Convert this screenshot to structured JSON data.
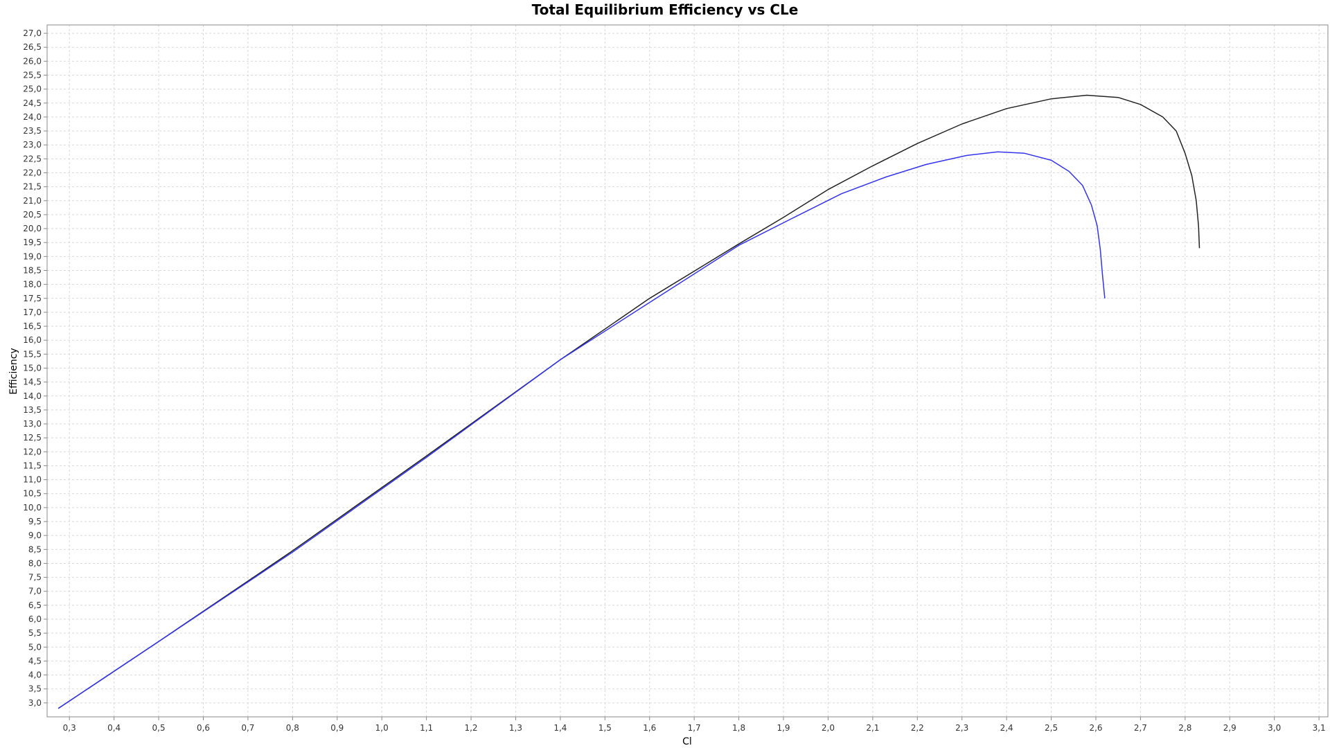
{
  "chart_data": {
    "type": "line",
    "title": "Total Equilibrium Efficiency vs CLe",
    "xlabel": "Cl",
    "ylabel": "Efficiency",
    "xlim": [
      0.25,
      3.12
    ],
    "ylim": [
      2.5,
      27.3
    ],
    "x_ticks": [
      "0,3",
      "0,4",
      "0,5",
      "0,6",
      "0,7",
      "0,8",
      "0,9",
      "1,0",
      "1,1",
      "1,2",
      "1,3",
      "1,4",
      "1,5",
      "1,6",
      "1,7",
      "1,8",
      "1,9",
      "2,0",
      "2,1",
      "2,2",
      "2,3",
      "2,4",
      "2,5",
      "2,6",
      "2,7",
      "2,8",
      "2,9",
      "3,0",
      "3,1"
    ],
    "y_ticks": [
      "3,0",
      "3,5",
      "4,0",
      "4,5",
      "5,0",
      "5,5",
      "6,0",
      "6,5",
      "7,0",
      "7,5",
      "8,0",
      "8,5",
      "9,0",
      "9,5",
      "10,0",
      "10,5",
      "11,0",
      "11,5",
      "12,0",
      "12,5",
      "13,0",
      "13,5",
      "14,0",
      "14,5",
      "15,0",
      "15,5",
      "16,0",
      "16,5",
      "17,0",
      "17,5",
      "18,0",
      "18,5",
      "19,0",
      "19,5",
      "20,0",
      "20,5",
      "21,0",
      "21,5",
      "22,0",
      "22,5",
      "23,0",
      "23,5",
      "24,0",
      "24,5",
      "25,0",
      "25,5",
      "26,0",
      "26,5",
      "27,0"
    ],
    "grid": true,
    "series": [
      {
        "color": "#222222",
        "points": [
          [
            0.275,
            2.8
          ],
          [
            0.5,
            5.2
          ],
          [
            0.8,
            8.45
          ],
          [
            1.1,
            11.85
          ],
          [
            1.4,
            15.3
          ],
          [
            1.6,
            17.5
          ],
          [
            1.8,
            19.45
          ],
          [
            1.9,
            20.4
          ],
          [
            2.0,
            21.4
          ],
          [
            2.1,
            22.25
          ],
          [
            2.2,
            23.05
          ],
          [
            2.3,
            23.75
          ],
          [
            2.4,
            24.3
          ],
          [
            2.5,
            24.65
          ],
          [
            2.58,
            24.78
          ],
          [
            2.65,
            24.7
          ],
          [
            2.7,
            24.45
          ],
          [
            2.75,
            24.0
          ],
          [
            2.78,
            23.5
          ],
          [
            2.8,
            22.7
          ],
          [
            2.815,
            21.9
          ],
          [
            2.825,
            21.0
          ],
          [
            2.83,
            20.1
          ],
          [
            2.832,
            19.3
          ]
        ]
      },
      {
        "color": "#3333ee",
        "points": [
          [
            0.275,
            2.8
          ],
          [
            0.5,
            5.2
          ],
          [
            0.8,
            8.4
          ],
          [
            1.1,
            11.8
          ],
          [
            1.4,
            15.3
          ],
          [
            1.6,
            17.35
          ],
          [
            1.8,
            19.4
          ],
          [
            1.93,
            20.45
          ],
          [
            2.03,
            21.25
          ],
          [
            2.13,
            21.85
          ],
          [
            2.22,
            22.3
          ],
          [
            2.31,
            22.62
          ],
          [
            2.38,
            22.75
          ],
          [
            2.44,
            22.7
          ],
          [
            2.5,
            22.45
          ],
          [
            2.54,
            22.05
          ],
          [
            2.57,
            21.55
          ],
          [
            2.59,
            20.85
          ],
          [
            2.603,
            20.1
          ],
          [
            2.61,
            19.25
          ],
          [
            2.615,
            18.3
          ],
          [
            2.62,
            17.5
          ]
        ]
      }
    ]
  }
}
